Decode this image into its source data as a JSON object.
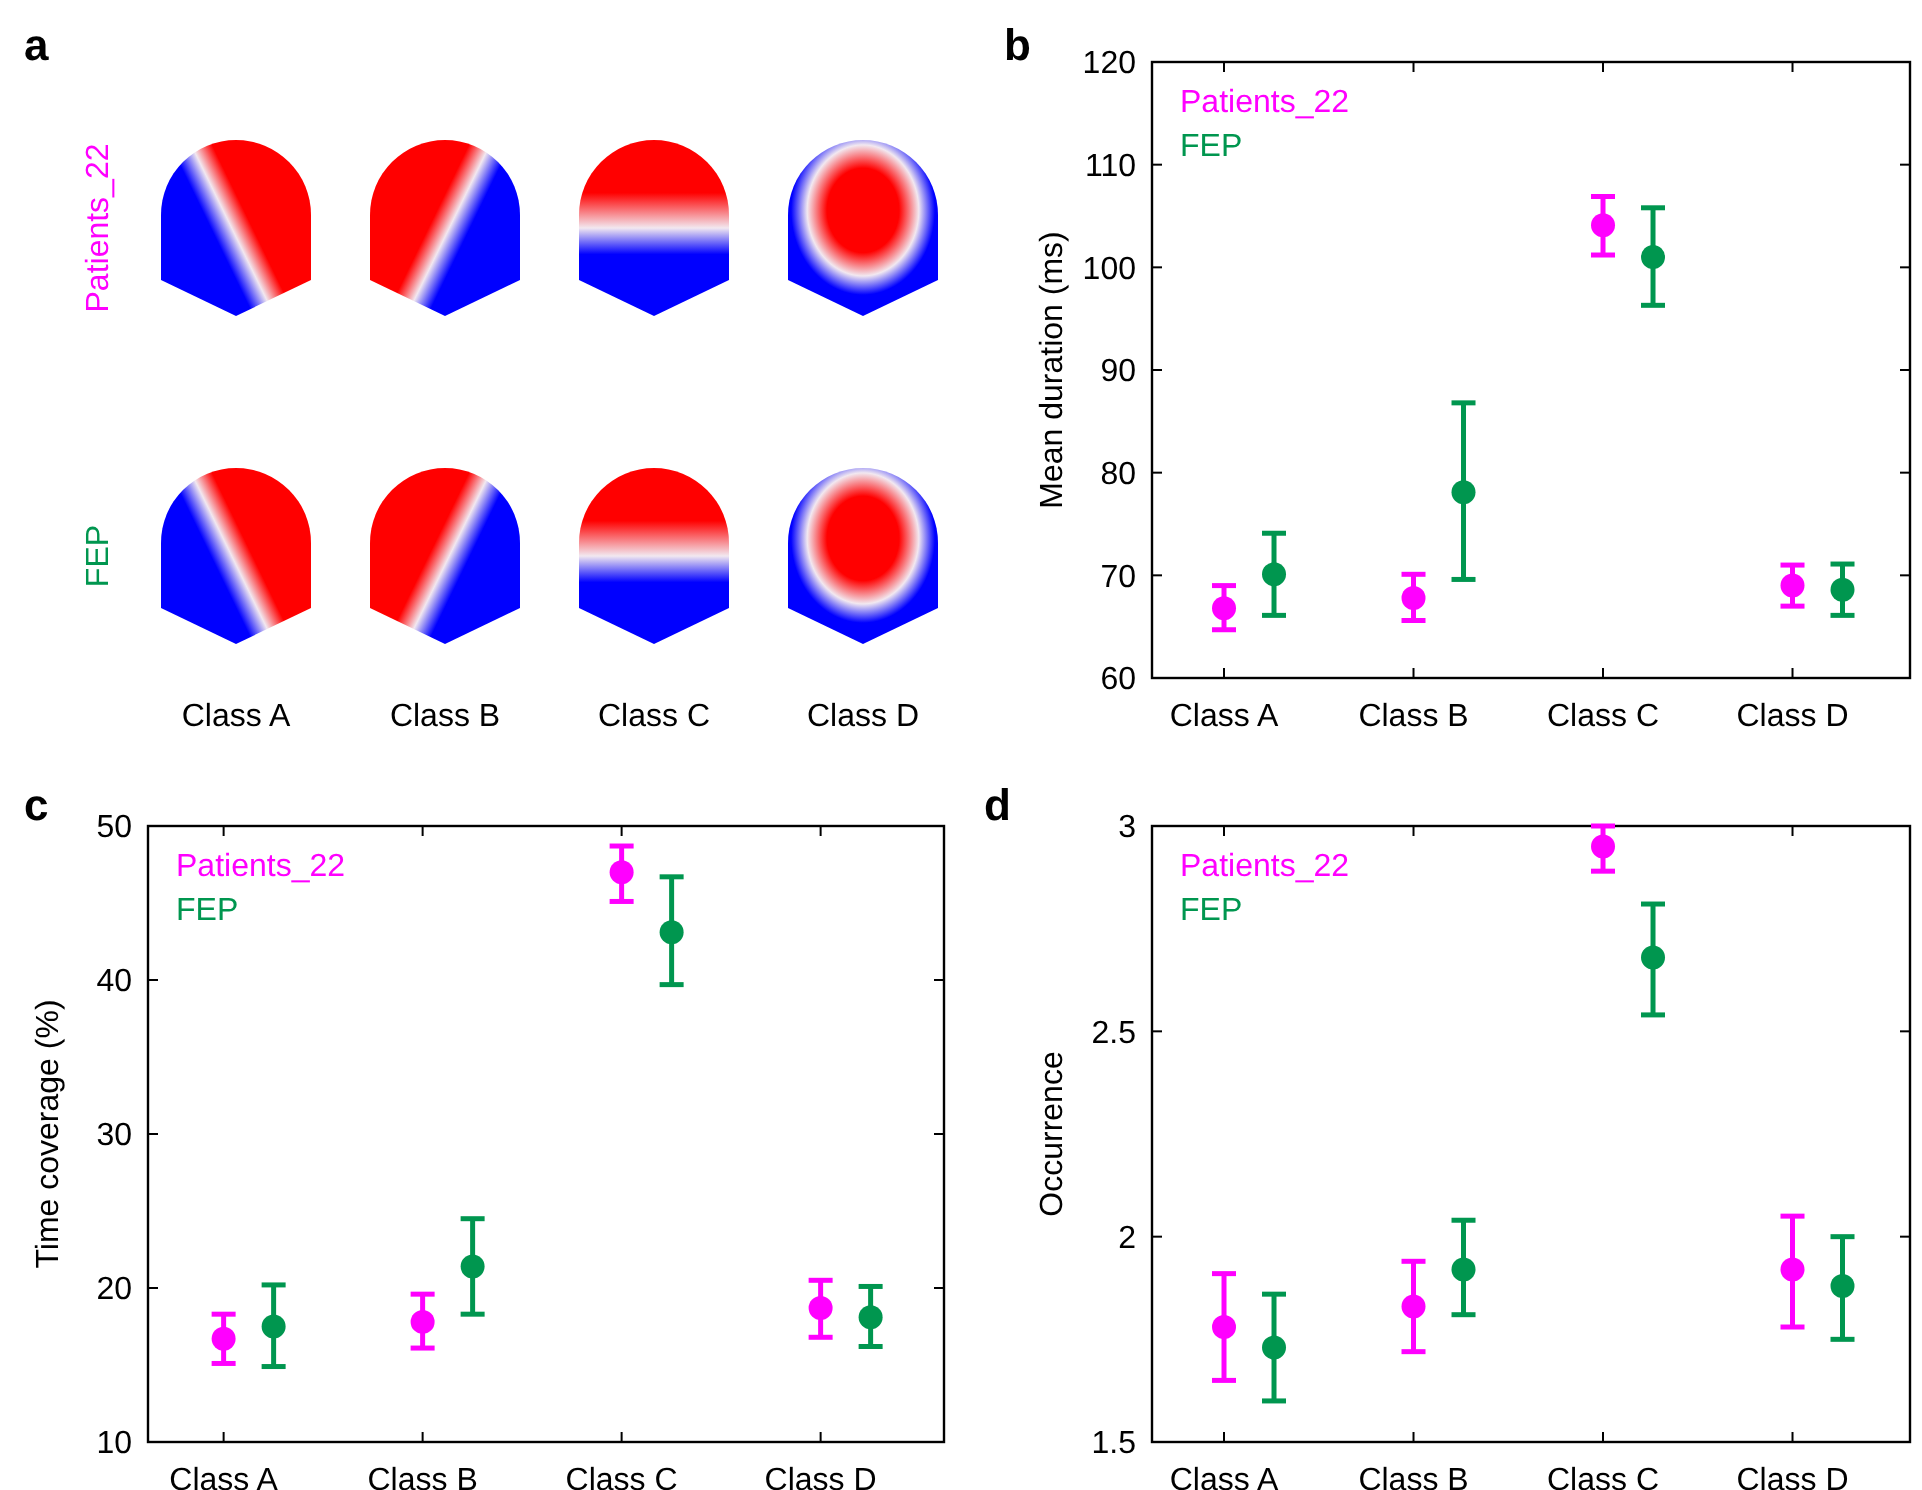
{
  "chart_data": [
    {
      "type": "other",
      "title": "a",
      "categories": [
        "Class A",
        "Class B",
        "Class C",
        "Class D"
      ],
      "annotations": [
        "Patients_22",
        "FEP"
      ]
    },
    {
      "type": "scatter",
      "title": "b",
      "ylabel": "Mean duration (ms)",
      "categories": [
        "Class A",
        "Class B",
        "Class C",
        "Class D"
      ],
      "ylim": [
        60,
        120
      ],
      "yticks": [
        60,
        70,
        80,
        90,
        100,
        110,
        120
      ],
      "legend": "top left",
      "marker": "circle",
      "series": [
        {
          "name": "Patients_22",
          "color": "#ff00ff",
          "values": [
            66.8,
            67.8,
            104.1,
            69.0
          ],
          "errors": [
            [
              64.7,
              69.0
            ],
            [
              65.6,
              70.1
            ],
            [
              101.2,
              106.9
            ],
            [
              67.0,
              71.0
            ]
          ]
        },
        {
          "name": "FEP",
          "color": "#00964f",
          "values": [
            70.1,
            78.1,
            101.0,
            68.6
          ],
          "errors": [
            [
              66.1,
              74.1
            ],
            [
              69.6,
              86.8
            ],
            [
              96.3,
              105.8
            ],
            [
              66.1,
              71.1
            ]
          ]
        }
      ]
    },
    {
      "type": "scatter",
      "title": "c",
      "ylabel": "Time coverage (%)",
      "categories": [
        "Class A",
        "Class B",
        "Class C",
        "Class D"
      ],
      "ylim": [
        10,
        50
      ],
      "yticks": [
        10,
        20,
        30,
        40,
        50
      ],
      "legend": "top left",
      "marker": "circle",
      "series": [
        {
          "name": "Patients_22",
          "color": "#ff00ff",
          "values": [
            16.7,
            17.8,
            47.0,
            18.7
          ],
          "errors": [
            [
              15.1,
              18.3
            ],
            [
              16.1,
              19.6
            ],
            [
              45.1,
              48.7
            ],
            [
              16.8,
              20.5
            ]
          ]
        },
        {
          "name": "FEP",
          "color": "#00964f",
          "values": [
            17.5,
            21.4,
            43.1,
            18.1
          ],
          "errors": [
            [
              14.9,
              20.2
            ],
            [
              18.3,
              24.5
            ],
            [
              39.7,
              46.7
            ],
            [
              16.2,
              20.1
            ]
          ]
        }
      ]
    },
    {
      "type": "scatter",
      "title": "d",
      "ylabel": "Occurrence",
      "categories": [
        "Class A",
        "Class B",
        "Class C",
        "Class D"
      ],
      "ylim": [
        1.5,
        3
      ],
      "yticks": [
        1.5,
        2,
        2.5,
        3
      ],
      "legend": "top left",
      "marker": "circle",
      "series": [
        {
          "name": "Patients_22",
          "color": "#ff00ff",
          "values": [
            1.78,
            1.83,
            2.95,
            1.92
          ],
          "errors": [
            [
              1.65,
              1.91
            ],
            [
              1.72,
              1.94
            ],
            [
              2.89,
              3.0
            ],
            [
              1.78,
              2.05
            ]
          ]
        },
        {
          "name": "FEP",
          "color": "#00964f",
          "values": [
            1.73,
            1.92,
            2.68,
            1.88
          ],
          "errors": [
            [
              1.6,
              1.86
            ],
            [
              1.81,
              2.04
            ],
            [
              2.54,
              2.81
            ],
            [
              1.75,
              2.0
            ]
          ]
        }
      ]
    }
  ]
}
